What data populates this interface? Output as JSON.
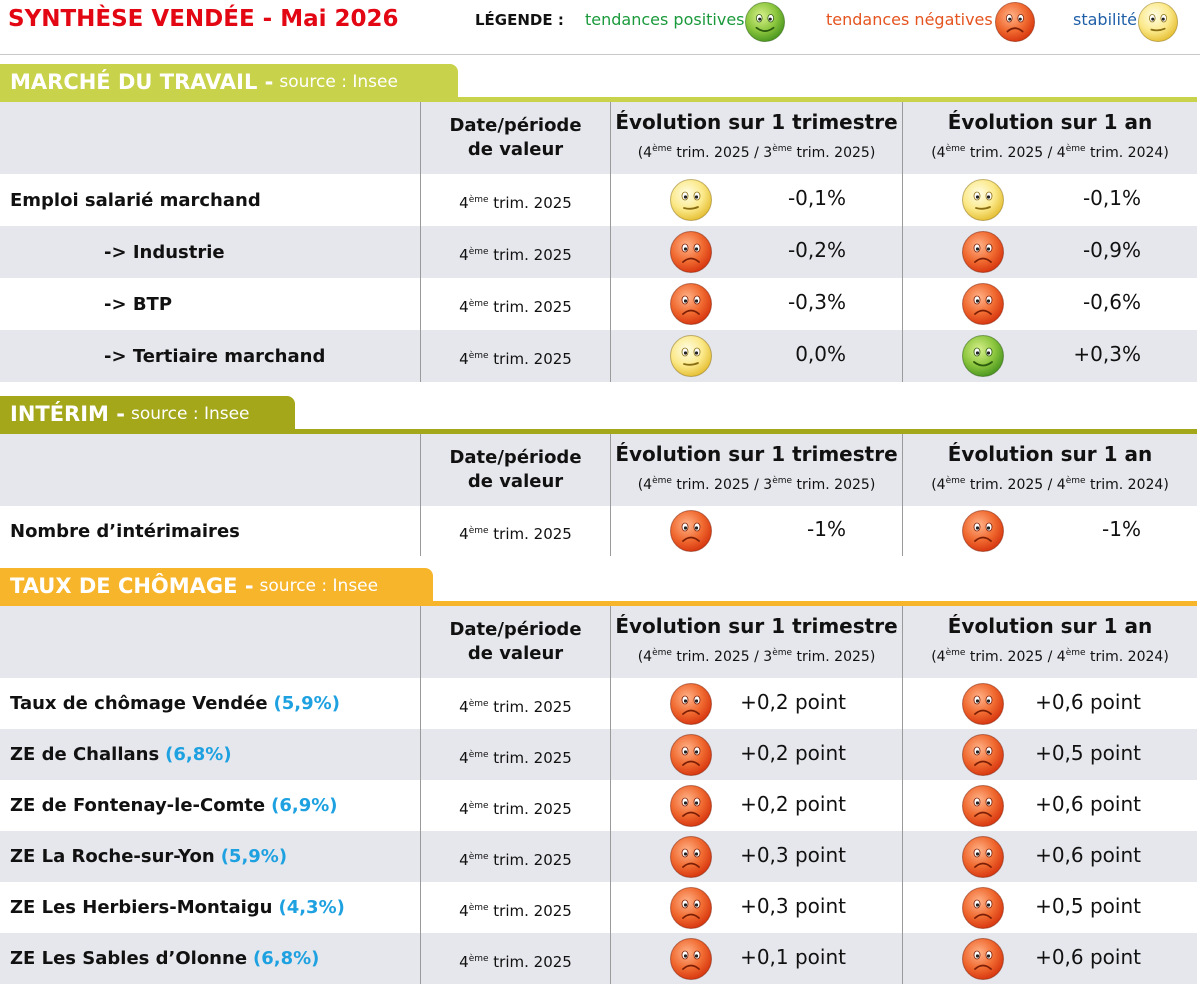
{
  "header": {
    "title": "SYNTHÈSE VENDÉE - Mai 2026",
    "legend_label": "LÉGENDE :",
    "legend": [
      {
        "label": "tendances positives",
        "mood": "positive"
      },
      {
        "label": "tendances négatives",
        "mood": "negative"
      },
      {
        "label": "stabilité",
        "mood": "stable"
      }
    ]
  },
  "sections": [
    {
      "title": "MARCHÉ DU TRAVAIL -",
      "source": "source : Insee",
      "color": "#c9d24b",
      "columns": {
        "date": "Date/période de valeur",
        "quarter": {
          "title": "Évolution sur 1 trimestre",
          "period": [
            {
              "text": "(4"
            },
            {
              "sup": "ème"
            },
            {
              "text": " trim. 2025 / 3"
            },
            {
              "sup": "ème"
            },
            {
              "text": " trim. 2025)"
            }
          ]
        },
        "year": {
          "title": "Évolution sur 1 an",
          "period": [
            {
              "text": "(4"
            },
            {
              "sup": "ème"
            },
            {
              "text": " trim. 2025 / 4"
            },
            {
              "sup": "ème"
            },
            {
              "text": " trim. 2024)"
            }
          ]
        }
      },
      "rows": [
        {
          "label": "Emploi salarié marchand",
          "date": [
            {
              "text": "4"
            },
            {
              "sup": "ème"
            },
            {
              "text": " trim. 2025"
            }
          ],
          "quarter": {
            "mood": "stable",
            "value": "-0,1%"
          },
          "year": {
            "mood": "stable",
            "value": "-0,1%"
          }
        },
        {
          "label": "-> Industrie",
          "date": [
            {
              "text": "4"
            },
            {
              "sup": "ème"
            },
            {
              "text": " trim. 2025"
            }
          ],
          "quarter": {
            "mood": "negative",
            "value": "-0,2%"
          },
          "year": {
            "mood": "negative",
            "value": "-0,9%"
          }
        },
        {
          "label": "-> BTP",
          "date": [
            {
              "text": "4"
            },
            {
              "sup": "ème"
            },
            {
              "text": " trim. 2025"
            }
          ],
          "quarter": {
            "mood": "negative",
            "value": "-0,3%"
          },
          "year": {
            "mood": "negative",
            "value": "-0,6%"
          }
        },
        {
          "label": "-> Tertiaire marchand",
          "date": [
            {
              "text": "4"
            },
            {
              "sup": "ème"
            },
            {
              "text": " trim. 2025"
            }
          ],
          "quarter": {
            "mood": "stable",
            "value": "0,0%"
          },
          "year": {
            "mood": "positive",
            "value": "+0,3%"
          }
        }
      ]
    },
    {
      "title": "INTÉRIM -",
      "source": "source : Insee",
      "color": "#a4a71a",
      "columns": {
        "date": "Date/période de valeur",
        "quarter": {
          "title": "Évolution sur 1 trimestre",
          "period": [
            {
              "text": "(4"
            },
            {
              "sup": "ème"
            },
            {
              "text": " trim. 2025 / 3"
            },
            {
              "sup": "ème"
            },
            {
              "text": " trim. 2025)"
            }
          ]
        },
        "year": {
          "title": "Évolution sur 1 an",
          "period": [
            {
              "text": "(4"
            },
            {
              "sup": "ème"
            },
            {
              "text": " trim. 2025 / 4"
            },
            {
              "sup": "ème"
            },
            {
              "text": " trim. 2024)"
            }
          ]
        }
      },
      "rows": [
        {
          "label": "Nombre d’intérimaires",
          "date": [
            {
              "text": "4"
            },
            {
              "sup": "ème"
            },
            {
              "text": " trim. 2025"
            }
          ],
          "quarter": {
            "mood": "negative",
            "value": "-1%"
          },
          "year": {
            "mood": "negative",
            "value": "-1%"
          }
        }
      ]
    },
    {
      "title": "TAUX DE CHÔMAGE -",
      "source": "source : Insee",
      "color": "#f7b52c",
      "columns": {
        "date": "Date/période de valeur",
        "quarter": {
          "title": "Évolution sur 1 trimestre",
          "period": [
            {
              "text": "(4"
            },
            {
              "sup": "ème"
            },
            {
              "text": " trim. 2025 / 3"
            },
            {
              "sup": "ème"
            },
            {
              "text": " trim. 2025)"
            }
          ]
        },
        "year": {
          "title": "Évolution sur 1 an",
          "period": [
            {
              "text": "(4"
            },
            {
              "sup": "ème"
            },
            {
              "text": " trim. 2025 / 4"
            },
            {
              "sup": "ème"
            },
            {
              "text": " trim. 2024)"
            }
          ]
        }
      },
      "rows": [
        {
          "label": "Taux de chômage Vendée",
          "rate": "(5,9%)",
          "date": [
            {
              "text": "4"
            },
            {
              "sup": "ème"
            },
            {
              "text": " trim. 2025"
            }
          ],
          "quarter": {
            "mood": "negative",
            "value": "+0,2 point"
          },
          "year": {
            "mood": "negative",
            "value": "+0,6 point"
          }
        },
        {
          "label": "ZE de Challans",
          "rate": "(6,8%)",
          "date": [
            {
              "text": "4"
            },
            {
              "sup": "ème"
            },
            {
              "text": " trim. 2025"
            }
          ],
          "quarter": {
            "mood": "negative",
            "value": "+0,2 point"
          },
          "year": {
            "mood": "negative",
            "value": "+0,5 point"
          }
        },
        {
          "label": "ZE de Fontenay-le-Comte",
          "rate": "(6,9%)",
          "date": [
            {
              "text": "4"
            },
            {
              "sup": "ème"
            },
            {
              "text": " trim. 2025"
            }
          ],
          "quarter": {
            "mood": "negative",
            "value": "+0,2 point"
          },
          "year": {
            "mood": "negative",
            "value": "+0,6 point"
          }
        },
        {
          "label": "ZE La Roche-sur-Yon",
          "rate": "(5,9%)",
          "date": [
            {
              "text": "4"
            },
            {
              "sup": "ème"
            },
            {
              "text": " trim. 2025"
            }
          ],
          "quarter": {
            "mood": "negative",
            "value": "+0,3 point"
          },
          "year": {
            "mood": "negative",
            "value": "+0,6 point"
          }
        },
        {
          "label": "ZE Les Herbiers-Montaigu",
          "rate": "(4,3%)",
          "date": [
            {
              "text": "4"
            },
            {
              "sup": "ème"
            },
            {
              "text": " trim. 2025"
            }
          ],
          "quarter": {
            "mood": "negative",
            "value": "+0,3 point"
          },
          "year": {
            "mood": "negative",
            "value": "+0,5 point"
          }
        },
        {
          "label": "ZE Les Sables d’Olonne",
          "rate": "(6,8%)",
          "date": [
            {
              "text": "4"
            },
            {
              "sup": "ème"
            },
            {
              "text": " trim. 2025"
            }
          ],
          "quarter": {
            "mood": "negative",
            "value": "+0,1 point"
          },
          "year": {
            "mood": "negative",
            "value": "+0,6 point"
          }
        }
      ]
    }
  ]
}
